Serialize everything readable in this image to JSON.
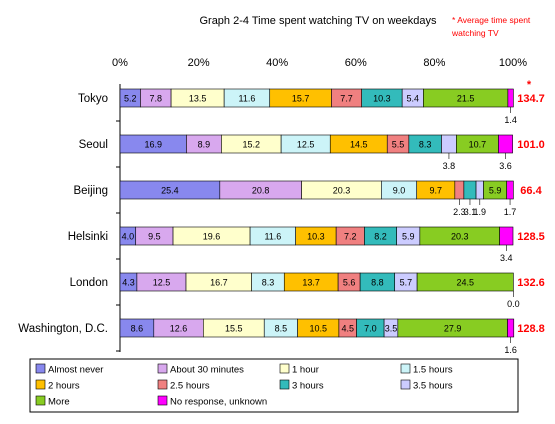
{
  "chart_data": {
    "type": "bar",
    "orientation": "horizontal",
    "stacked": true,
    "title": "Graph 2-4   Time spent watching TV on weekdays",
    "average_note_line1": "* Average time spent",
    "average_note_line2": "watching TV",
    "average_marker": "*",
    "xlim": [
      0,
      100
    ],
    "x_ticks": [
      "0%",
      "20%",
      "40%",
      "60%",
      "80%",
      "100%"
    ],
    "grid": false,
    "legend_position": "bottom",
    "categories": [
      "Tokyo",
      "Seoul",
      "Beijing",
      "Helsinki",
      "London",
      "Washington, D.C."
    ],
    "series": [
      {
        "name": "Almost never",
        "color": "#8888ee",
        "values": [
          5.2,
          16.9,
          25.4,
          4.0,
          4.3,
          8.6
        ]
      },
      {
        "name": "About 30 minutes",
        "color": "#d8a8ee",
        "values": [
          7.8,
          8.9,
          20.8,
          9.5,
          12.5,
          12.6
        ]
      },
      {
        "name": "1 hour",
        "color": "#ffffcc",
        "values": [
          13.5,
          15.2,
          20.3,
          19.6,
          16.7,
          15.5
        ]
      },
      {
        "name": "1.5 hours",
        "color": "#ccf4f8",
        "values": [
          11.6,
          12.5,
          9.0,
          11.6,
          8.3,
          8.5
        ]
      },
      {
        "name": "2 hours",
        "color": "#ffc000",
        "values": [
          15.7,
          14.5,
          9.7,
          10.3,
          13.7,
          10.5
        ]
      },
      {
        "name": "2.5 hours",
        "color": "#f08080",
        "values": [
          7.7,
          5.5,
          2.3,
          7.2,
          5.6,
          4.5
        ]
      },
      {
        "name": "3 hours",
        "color": "#33bbbb",
        "values": [
          10.3,
          8.3,
          3.1,
          8.2,
          8.8,
          7.0
        ]
      },
      {
        "name": "3.5 hours",
        "color": "#ccccff",
        "values": [
          5.4,
          3.8,
          1.9,
          5.9,
          5.7,
          3.5
        ]
      },
      {
        "name": "More",
        "color": "#88cc22",
        "values": [
          21.5,
          10.7,
          5.9,
          20.3,
          24.5,
          27.9
        ]
      },
      {
        "name": "No response, unknown",
        "color": "#ff00ff",
        "values": [
          1.4,
          3.6,
          1.7,
          3.4,
          0.0,
          1.6
        ]
      }
    ],
    "segment_labels": [
      [
        "5.2",
        "7.8",
        "13.5",
        "11.6",
        "15.7",
        "7.7",
        "10.3",
        "5.4",
        "21.5",
        ""
      ],
      [
        "16.9",
        "8.9",
        "15.2",
        "12.5",
        "14.5",
        "5.5",
        "8.3",
        "",
        "10.7",
        ""
      ],
      [
        "25.4",
        "20.8",
        "20.3",
        "9.0",
        "9.7",
        "",
        "",
        "",
        "5.9",
        ""
      ],
      [
        "4.0",
        "9.5",
        "19.6",
        "11.6",
        "10.3",
        "7.2",
        "8.2",
        "5.9",
        "20.3",
        ""
      ],
      [
        "4.3",
        "12.5",
        "16.7",
        "8.3",
        "13.7",
        "5.6",
        "8.8",
        "5.7",
        "24.5",
        ""
      ],
      [
        "8.6",
        "12.6",
        "15.5",
        "8.5",
        "10.5",
        "4.5",
        "7.0",
        "3.5",
        "27.9",
        ""
      ]
    ],
    "below_bar_labels": [
      [
        {
          "text": "1.4",
          "series": 9
        }
      ],
      [
        {
          "text": "3.8",
          "series": 7
        },
        {
          "text": "3.6",
          "series": 9
        }
      ],
      [
        {
          "text": "2.3",
          "series": 5
        },
        {
          "text": "3.1",
          "series": 6
        },
        {
          "text": "1.9",
          "series": 7
        },
        {
          "text": "1.7",
          "series": 9
        }
      ],
      [
        {
          "text": "3.4",
          "series": 9
        }
      ],
      [
        {
          "text": "0.0",
          "series": 9
        }
      ],
      [
        {
          "text": "1.6",
          "series": 9
        }
      ]
    ],
    "averages": [
      "134.7",
      "101.0",
      "66.4",
      "128.5",
      "132.6",
      "128.8"
    ],
    "average_color": "#ff0000"
  }
}
